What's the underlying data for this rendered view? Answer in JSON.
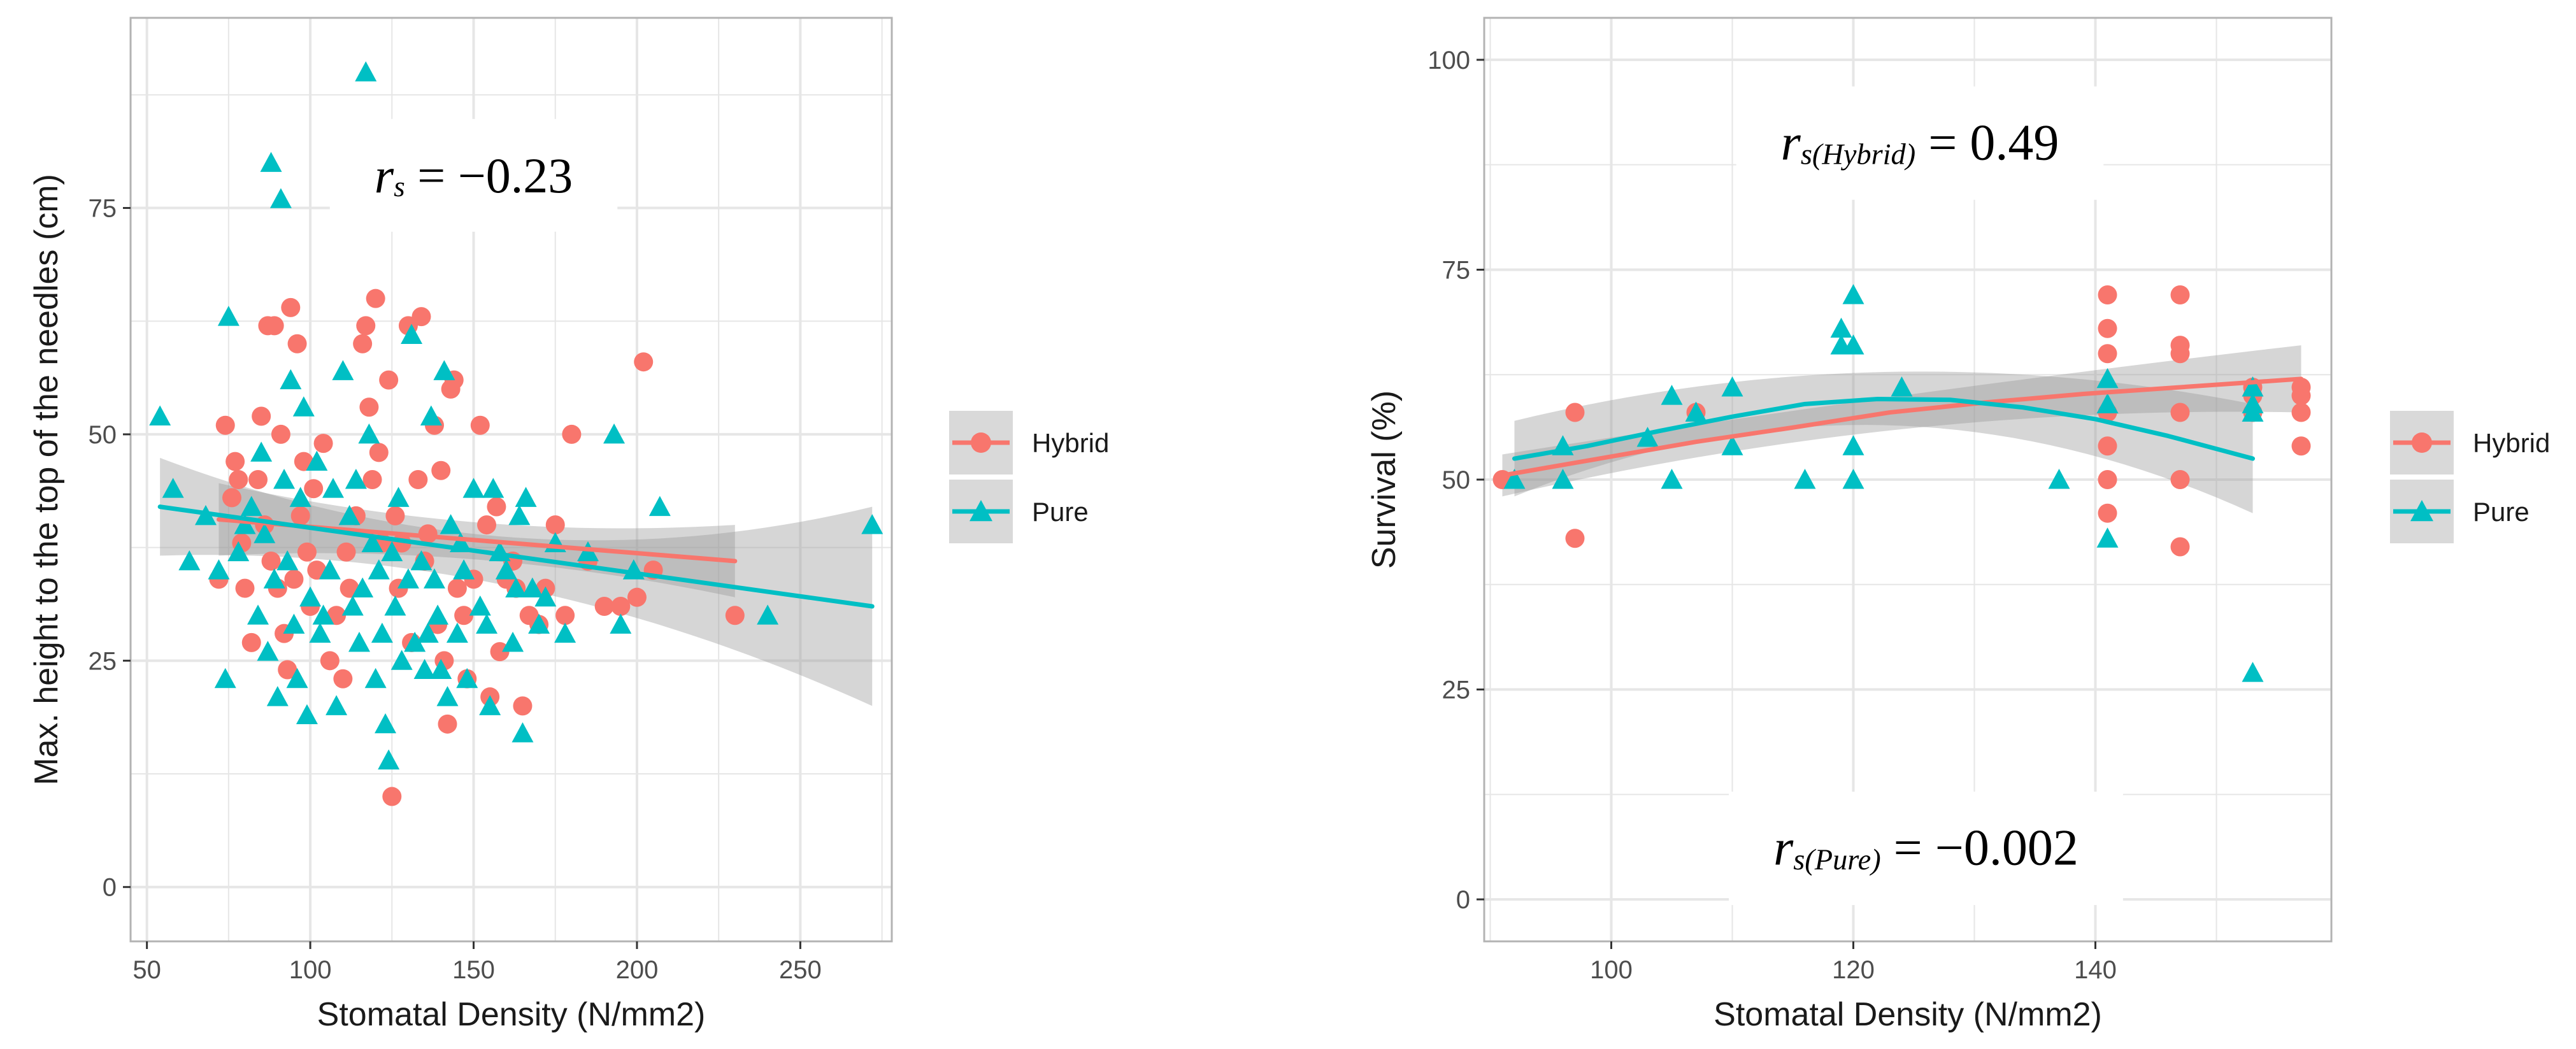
{
  "chart_data": [
    {
      "type": "scatter",
      "xlabel": "Stomatal Density (N/mm2)",
      "ylabel": "Max. height to the top of the needles (cm)",
      "xlim": [
        45,
        278
      ],
      "ylim": [
        -6,
        96
      ],
      "xticks": [
        50,
        100,
        150,
        200,
        250
      ],
      "yticks": [
        0,
        25,
        50,
        75
      ],
      "grid": true,
      "legend_position": "right",
      "annotations": [
        {
          "r": "r",
          "sub": "s",
          "rest": " = −0.23",
          "x": 150,
          "y": 78,
          "size": 78
        }
      ],
      "series": [
        {
          "name": "Hybrid",
          "color": "#f8766d",
          "marker": "circle",
          "points": [
            [
              72,
              34
            ],
            [
              74,
              51
            ],
            [
              76,
              43
            ],
            [
              77,
              47
            ],
            [
              78,
              45
            ],
            [
              79,
              38
            ],
            [
              80,
              33
            ],
            [
              82,
              27
            ],
            [
              84,
              45
            ],
            [
              85,
              52
            ],
            [
              86,
              40
            ],
            [
              87,
              62
            ],
            [
              88,
              36
            ],
            [
              89,
              62
            ],
            [
              90,
              33
            ],
            [
              91,
              50
            ],
            [
              92,
              28
            ],
            [
              93,
              24
            ],
            [
              94,
              64
            ],
            [
              95,
              34
            ],
            [
              96,
              60
            ],
            [
              97,
              41
            ],
            [
              98,
              47
            ],
            [
              99,
              37
            ],
            [
              100,
              31
            ],
            [
              101,
              44
            ],
            [
              102,
              35
            ],
            [
              104,
              49
            ],
            [
              106,
              25
            ],
            [
              108,
              30
            ],
            [
              110,
              23
            ],
            [
              111,
              37
            ],
            [
              112,
              33
            ],
            [
              114,
              41
            ],
            [
              116,
              60
            ],
            [
              117,
              62
            ],
            [
              118,
              53
            ],
            [
              119,
              45
            ],
            [
              120,
              65
            ],
            [
              121,
              48
            ],
            [
              122,
              38
            ],
            [
              124,
              56
            ],
            [
              125,
              10
            ],
            [
              126,
              41
            ],
            [
              127,
              33
            ],
            [
              128,
              38
            ],
            [
              130,
              62
            ],
            [
              131,
              27
            ],
            [
              133,
              45
            ],
            [
              134,
              63
            ],
            [
              135,
              36
            ],
            [
              136,
              39
            ],
            [
              138,
              51
            ],
            [
              139,
              29
            ],
            [
              140,
              46
            ],
            [
              141,
              25
            ],
            [
              142,
              18
            ],
            [
              143,
              55
            ],
            [
              144,
              56
            ],
            [
              145,
              33
            ],
            [
              147,
              30
            ],
            [
              148,
              23
            ],
            [
              150,
              34
            ],
            [
              152,
              51
            ],
            [
              154,
              40
            ],
            [
              155,
              21
            ],
            [
              157,
              42
            ],
            [
              158,
              26
            ],
            [
              160,
              34
            ],
            [
              162,
              36
            ],
            [
              163,
              33
            ],
            [
              165,
              20
            ],
            [
              167,
              30
            ],
            [
              170,
              29
            ],
            [
              172,
              33
            ],
            [
              175,
              40
            ],
            [
              178,
              30
            ],
            [
              180,
              50
            ],
            [
              185,
              36
            ],
            [
              190,
              31
            ],
            [
              195,
              31
            ],
            [
              200,
              32
            ],
            [
              202,
              58
            ],
            [
              205,
              35
            ],
            [
              230,
              30
            ]
          ]
        },
        {
          "name": "Pure",
          "color": "#00bfc4",
          "marker": "triangle",
          "points": [
            [
              54,
              52
            ],
            [
              58,
              44
            ],
            [
              63,
              36
            ],
            [
              68,
              41
            ],
            [
              72,
              35
            ],
            [
              74,
              23
            ],
            [
              75,
              63
            ],
            [
              78,
              37
            ],
            [
              80,
              40
            ],
            [
              82,
              42
            ],
            [
              84,
              30
            ],
            [
              85,
              48
            ],
            [
              86,
              39
            ],
            [
              87,
              26
            ],
            [
              88,
              80
            ],
            [
              89,
              34
            ],
            [
              90,
              21
            ],
            [
              91,
              76
            ],
            [
              92,
              45
            ],
            [
              93,
              36
            ],
            [
              94,
              56
            ],
            [
              95,
              29
            ],
            [
              96,
              23
            ],
            [
              97,
              43
            ],
            [
              98,
              53
            ],
            [
              99,
              19
            ],
            [
              100,
              32
            ],
            [
              102,
              47
            ],
            [
              103,
              28
            ],
            [
              104,
              30
            ],
            [
              106,
              35
            ],
            [
              107,
              44
            ],
            [
              108,
              20
            ],
            [
              110,
              57
            ],
            [
              112,
              41
            ],
            [
              113,
              31
            ],
            [
              114,
              45
            ],
            [
              115,
              27
            ],
            [
              116,
              33
            ],
            [
              117,
              90
            ],
            [
              118,
              50
            ],
            [
              119,
              38
            ],
            [
              120,
              23
            ],
            [
              121,
              35
            ],
            [
              122,
              28
            ],
            [
              123,
              18
            ],
            [
              124,
              14
            ],
            [
              125,
              37
            ],
            [
              126,
              31
            ],
            [
              127,
              43
            ],
            [
              128,
              25
            ],
            [
              130,
              34
            ],
            [
              131,
              61
            ],
            [
              132,
              27
            ],
            [
              134,
              36
            ],
            [
              135,
              24
            ],
            [
              136,
              28
            ],
            [
              137,
              52
            ],
            [
              138,
              34
            ],
            [
              139,
              30
            ],
            [
              140,
              24
            ],
            [
              141,
              57
            ],
            [
              142,
              21
            ],
            [
              143,
              40
            ],
            [
              145,
              28
            ],
            [
              146,
              38
            ],
            [
              147,
              35
            ],
            [
              148,
              23
            ],
            [
              150,
              44
            ],
            [
              152,
              31
            ],
            [
              154,
              29
            ],
            [
              155,
              20
            ],
            [
              156,
              44
            ],
            [
              158,
              37
            ],
            [
              160,
              35
            ],
            [
              162,
              27
            ],
            [
              163,
              33
            ],
            [
              164,
              41
            ],
            [
              165,
              17
            ],
            [
              166,
              43
            ],
            [
              168,
              33
            ],
            [
              170,
              29
            ],
            [
              172,
              32
            ],
            [
              175,
              38
            ],
            [
              178,
              28
            ],
            [
              185,
              37
            ],
            [
              193,
              50
            ],
            [
              195,
              29
            ],
            [
              199,
              35
            ],
            [
              207,
              42
            ],
            [
              240,
              30
            ],
            [
              272,
              40
            ]
          ]
        }
      ],
      "fits": [
        {
          "name": "Hybrid",
          "color": "#f8766d",
          "x": [
            72,
            230
          ],
          "y": [
            40.6,
            36.0
          ],
          "band": [
            [
              72,
              36.6,
              44.6
            ],
            [
              150,
              36.2,
              40.3
            ],
            [
              230,
              32.0,
              40.0
            ]
          ]
        },
        {
          "name": "Pure",
          "color": "#00bfc4",
          "x": [
            54,
            272
          ],
          "y": [
            42.0,
            31.0
          ],
          "band": [
            [
              54,
              36.6,
              47.4
            ],
            [
              150,
              34.0,
              39.0
            ],
            [
              272,
              20.0,
              42.0
            ]
          ]
        }
      ]
    },
    {
      "type": "scatter",
      "xlabel": "Stomatal Density (N/mm2)",
      "ylabel": "Survival (%)",
      "xlim": [
        89.5,
        159.5
      ],
      "ylim": [
        -5,
        105
      ],
      "xticks": [
        100,
        120,
        140
      ],
      "yticks": [
        0,
        25,
        50,
        75,
        100
      ],
      "grid": true,
      "legend_position": "right",
      "annotations": [
        {
          "r": "r",
          "sub": "s(Hybrid)",
          "rest": " = 0.49",
          "x": 125.5,
          "y": 89.5,
          "size": 80
        },
        {
          "r": "r",
          "sub": "s(Pure)",
          "rest": " = −0.002",
          "x": 126,
          "y": 5.5,
          "size": 80
        }
      ],
      "series": [
        {
          "name": "Hybrid",
          "color": "#f8766d",
          "marker": "circle",
          "points": [
            [
              91,
              50
            ],
            [
              97,
              58
            ],
            [
              97,
              43
            ],
            [
              107,
              58
            ],
            [
              141,
              72
            ],
            [
              141,
              68
            ],
            [
              141,
              65
            ],
            [
              141,
              58
            ],
            [
              141,
              54
            ],
            [
              141,
              50
            ],
            [
              141,
              46
            ],
            [
              147,
              72
            ],
            [
              147,
              66
            ],
            [
              147,
              65
            ],
            [
              147,
              58
            ],
            [
              147,
              50
            ],
            [
              147,
              42
            ],
            [
              153,
              61
            ],
            [
              153,
              60
            ],
            [
              153,
              58
            ],
            [
              157,
              61
            ],
            [
              157,
              60
            ],
            [
              157,
              58
            ],
            [
              157,
              54
            ]
          ]
        },
        {
          "name": "Pure",
          "color": "#00bfc4",
          "marker": "triangle",
          "points": [
            [
              92,
              50
            ],
            [
              96,
              54
            ],
            [
              96,
              50
            ],
            [
              103,
              55
            ],
            [
              105,
              60
            ],
            [
              105,
              50
            ],
            [
              107,
              58
            ],
            [
              110,
              61
            ],
            [
              110,
              54
            ],
            [
              116,
              50
            ],
            [
              119,
              68
            ],
            [
              119,
              66
            ],
            [
              120,
              72
            ],
            [
              120,
              66
            ],
            [
              120,
              54
            ],
            [
              120,
              50
            ],
            [
              124,
              61
            ],
            [
              137,
              50
            ],
            [
              141,
              62
            ],
            [
              141,
              59
            ],
            [
              141,
              43
            ],
            [
              153,
              61
            ],
            [
              153,
              59
            ],
            [
              153,
              58
            ],
            [
              153,
              27
            ]
          ]
        }
      ],
      "fits": [
        {
          "name": "Hybrid",
          "color": "#f8766d",
          "x": [
            91,
            99,
            107,
            115,
            123,
            131,
            139,
            147,
            153,
            157
          ],
          "y": [
            50.5,
            52.5,
            54.5,
            56.2,
            58.0,
            59.2,
            60.2,
            61.0,
            61.6,
            62.0
          ],
          "band": [
            [
              91,
              48.0,
              53.0
            ],
            [
              124,
              56.0,
              60.0
            ],
            [
              157,
              58.0,
              66.0
            ]
          ]
        },
        {
          "name": "Pure",
          "color": "#00bfc4",
          "x": [
            92,
            98,
            104,
            110,
            116,
            122,
            128,
            134,
            140,
            146,
            153
          ],
          "y": [
            52.5,
            54.0,
            55.8,
            57.5,
            59.0,
            59.6,
            59.5,
            58.6,
            57.2,
            55.2,
            52.5
          ],
          "band": [
            [
              92,
              48.0,
              57.0
            ],
            [
              122,
              56.5,
              62.8
            ],
            [
              153,
              46.0,
              59.0
            ]
          ]
        }
      ]
    }
  ]
}
